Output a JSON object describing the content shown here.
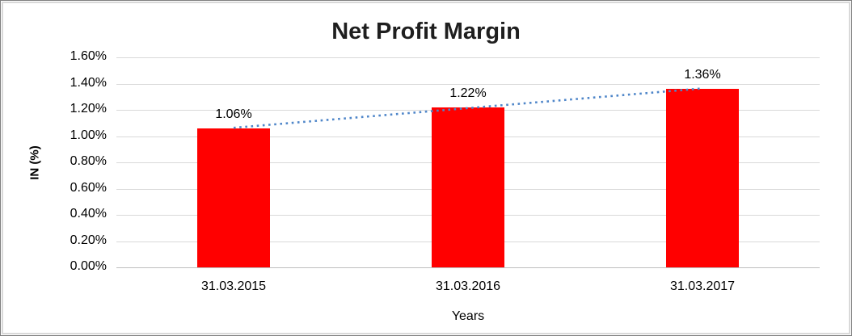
{
  "chart_data": {
    "type": "bar",
    "title": "Net Profit Margin",
    "xlabel": "Years",
    "ylabel": "IN (%)",
    "categories": [
      "31.03.2015",
      "31.03.2016",
      "31.03.2017"
    ],
    "values": [
      1.06,
      1.22,
      1.36
    ],
    "data_labels": [
      "1.06%",
      "1.22%",
      "1.36%"
    ],
    "ylim": [
      0,
      1.6
    ],
    "y_tick_labels": [
      "0.00%",
      "0.20%",
      "0.40%",
      "0.60%",
      "0.80%",
      "1.00%",
      "1.20%",
      "1.40%",
      "1.60%"
    ],
    "grid": "horizontal",
    "legend": "none",
    "bar_color": "#ff0000",
    "trendline": {
      "style": "dotted",
      "color": "#4f86c9",
      "kind": "linear"
    },
    "gridline_color": "#d9d9d9",
    "axis_line_color": "#bfbfbf",
    "title_color": "#1f1f1f",
    "frame_color": "#d9d9d9"
  }
}
